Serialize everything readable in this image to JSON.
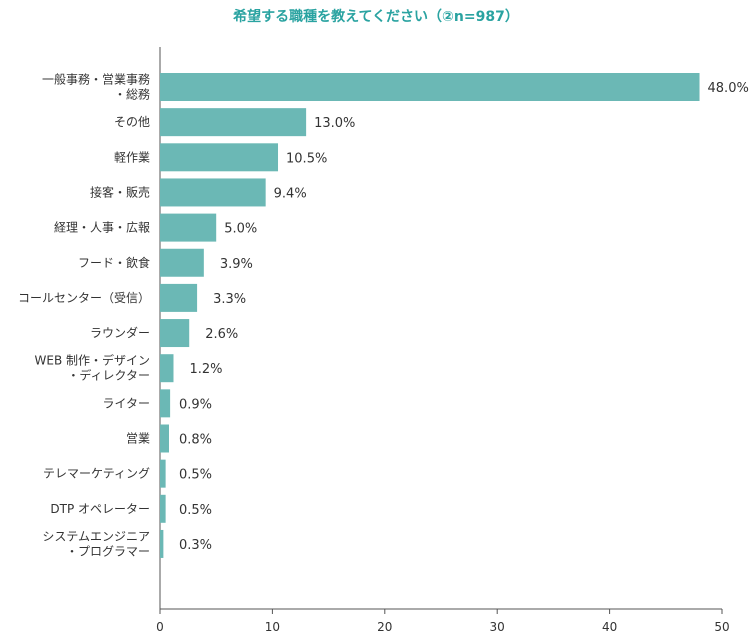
{
  "chart_data": {
    "type": "bar",
    "orientation": "horizontal",
    "title": "希望する職種を教えてください（②n=987）",
    "xlim": [
      0,
      50
    ],
    "xticks": [
      "0",
      "10",
      "20",
      "30",
      "40",
      "50"
    ],
    "bar_color": "#6bb8b5",
    "title_color": "#2aa3a1",
    "grid": false,
    "categories": [
      [
        "一般事務・営業事務",
        "・総務"
      ],
      [
        "その他"
      ],
      [
        "軽作業"
      ],
      [
        "接客・販売"
      ],
      [
        "経理・人事・広報"
      ],
      [
        "フード・飲食"
      ],
      [
        "コールセンター（受信）"
      ],
      [
        "ラウンダー"
      ],
      [
        "WEB 制作・デザイン",
        "・ディレクター"
      ],
      [
        "ライター"
      ],
      [
        "営業"
      ],
      [
        "テレマーケティング"
      ],
      [
        "DTP オペレーター"
      ],
      [
        "システムエンジニア",
        "・プログラマー"
      ]
    ],
    "values": [
      48.0,
      13.0,
      10.5,
      9.4,
      5.0,
      3.9,
      3.3,
      2.6,
      1.2,
      0.9,
      0.8,
      0.5,
      0.5,
      0.3
    ],
    "value_labels": [
      "48.0%",
      "13.0%",
      "10.5%",
      "9.4%",
      "5.0%",
      "3.9%",
      "3.3%",
      "2.6%",
      "1.2%",
      "0.9%",
      "0.8%",
      "0.5%",
      "0.5%",
      "0.3%"
    ]
  }
}
